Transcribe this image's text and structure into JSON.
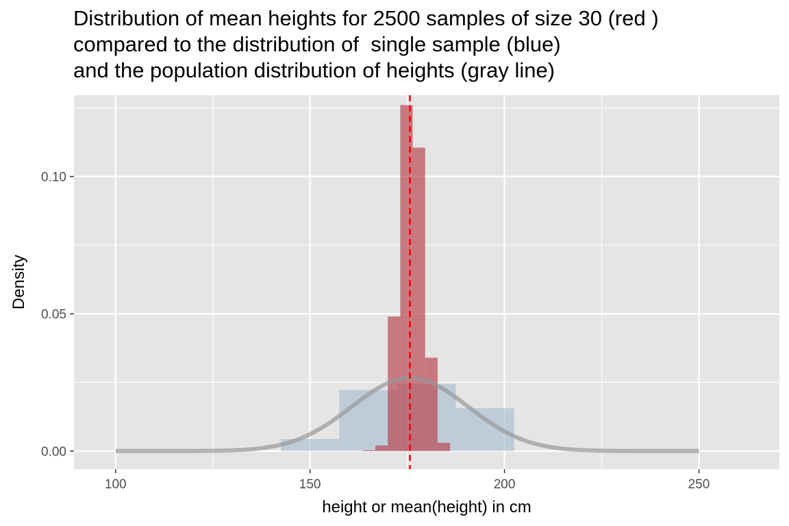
{
  "chart_data": {
    "type": "histogram",
    "title_lines": [
      "Distribution of mean heights for 2500 samples of size 30 (red )",
      "compared to the distribution of  single sample (blue)",
      "and the population distribution of heights (gray line)"
    ],
    "xlabel": "height or mean(height) in cm",
    "ylabel": "Density",
    "xlim": [
      89.3,
      270.7
    ],
    "ylim": [
      -0.0066,
      0.1296
    ],
    "x_ticks": [
      100,
      150,
      200,
      250
    ],
    "y_ticks": [
      0.0,
      0.05,
      0.1
    ],
    "x_tick_labels": [
      "100",
      "150",
      "200",
      "250"
    ],
    "y_tick_labels": [
      "0.00",
      "0.05",
      "0.10",
      ""
    ],
    "grid": true,
    "panel_background": "#e5e5e5",
    "grid_color": "#ffffff",
    "series": [
      {
        "kind": "histogram",
        "color": "#a3bad0",
        "opacity": 0.6,
        "bins": [
          {
            "x0": 142.5,
            "x1": 157.5,
            "density": 0.0044
          },
          {
            "x0": 157.5,
            "x1": 172.5,
            "density": 0.0222
          },
          {
            "x0": 172.5,
            "x1": 187.5,
            "density": 0.0244
          },
          {
            "x0": 187.5,
            "x1": 202.5,
            "density": 0.0156
          }
        ]
      },
      {
        "kind": "histogram",
        "color": "#b8434d",
        "opacity": 0.68,
        "bins": [
          {
            "x0": 163.6,
            "x1": 166.8,
            "density": 0.0003
          },
          {
            "x0": 166.8,
            "x1": 170.0,
            "density": 0.002
          },
          {
            "x0": 170.0,
            "x1": 173.2,
            "density": 0.049
          },
          {
            "x0": 173.2,
            "x1": 176.4,
            "density": 0.126
          },
          {
            "x0": 176.4,
            "x1": 179.6,
            "density": 0.1105
          },
          {
            "x0": 179.6,
            "x1": 182.8,
            "density": 0.034
          },
          {
            "x0": 182.8,
            "x1": 186.0,
            "density": 0.003
          }
        ]
      },
      {
        "kind": "density-curve",
        "color": "#999999",
        "opacity": 0.7,
        "distribution": "normal",
        "mean": 175.7,
        "sd": 15.0,
        "x_range": [
          100,
          250
        ]
      },
      {
        "kind": "vline",
        "color": "#ff0000",
        "style": "dashed",
        "x": 175.7
      }
    ]
  }
}
